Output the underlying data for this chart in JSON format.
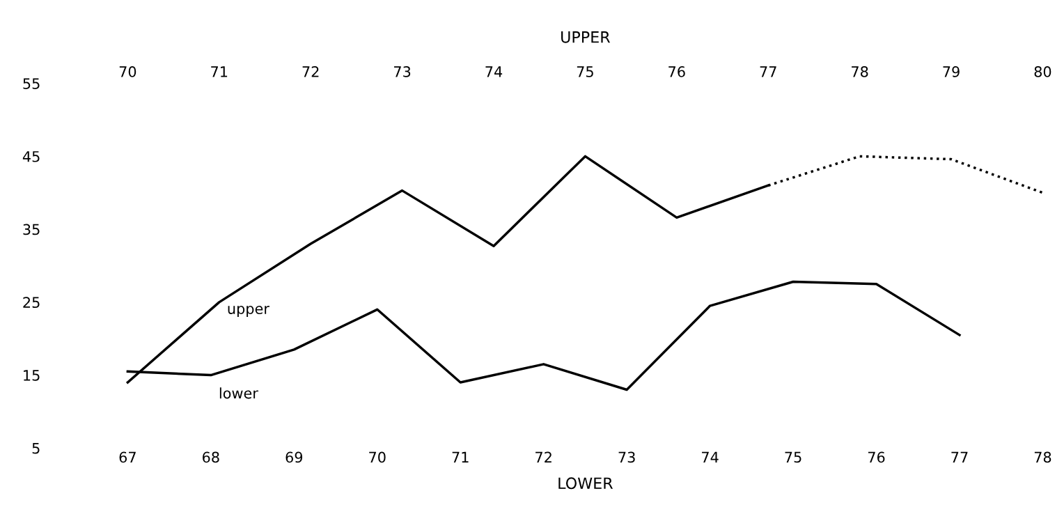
{
  "chart_data": {
    "type": "line",
    "xlabel": "LOWER",
    "x2label": "UPPER",
    "xlim": [
      67,
      78
    ],
    "xticks": [
      67,
      68,
      69,
      70,
      71,
      72,
      73,
      74,
      75,
      76,
      77,
      78
    ],
    "x2lim": [
      70,
      80
    ],
    "x2ticks": [
      70,
      71,
      72,
      73,
      74,
      75,
      76,
      77,
      78,
      79,
      80
    ],
    "ylim": [
      5,
      55
    ],
    "yticks": [
      5,
      15,
      25,
      35,
      45,
      55
    ],
    "grid": false,
    "legend": false,
    "marker": "none",
    "series": [
      {
        "name": "upper",
        "axis": "x2",
        "color": "#000000",
        "line_style": "solid",
        "x": [
          70,
          71,
          72,
          73,
          74,
          75,
          76,
          77
        ],
        "values": [
          14,
          25,
          33,
          40.3,
          32.7,
          45,
          36.6,
          41
        ]
      },
      {
        "axis": "x2",
        "color": "#000000",
        "line_style": "dotted",
        "x": [
          77,
          78,
          79,
          80
        ],
        "values": [
          41,
          45,
          44.6,
          40
        ]
      },
      {
        "name": "lower",
        "color": "#000000",
        "line_style": "solid",
        "x": [
          67,
          68,
          69,
          70,
          71,
          72,
          73,
          74,
          75,
          76,
          77
        ],
        "values": [
          15.5,
          15,
          18.5,
          24,
          14,
          16.5,
          13,
          24.5,
          27.8,
          27.5,
          20.5
        ]
      }
    ]
  }
}
